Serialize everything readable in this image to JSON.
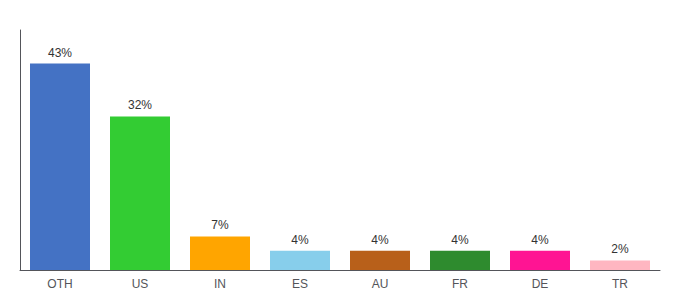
{
  "chart_data": {
    "type": "bar",
    "categories": [
      "OTH",
      "US",
      "IN",
      "ES",
      "AU",
      "FR",
      "DE",
      "TR"
    ],
    "values": [
      43,
      32,
      7,
      4,
      4,
      4,
      4,
      2
    ],
    "value_labels": [
      "43%",
      "32%",
      "7%",
      "4%",
      "4%",
      "4%",
      "4%",
      "2%"
    ],
    "colors": [
      "#4472C4",
      "#33CC33",
      "#FFA500",
      "#87CEEB",
      "#B8601A",
      "#2E8B2E",
      "#FF1493",
      "#FFB6C1"
    ],
    "ylim": [
      0,
      50
    ],
    "grid": false,
    "data_labels": true,
    "tick_labels": "x"
  }
}
